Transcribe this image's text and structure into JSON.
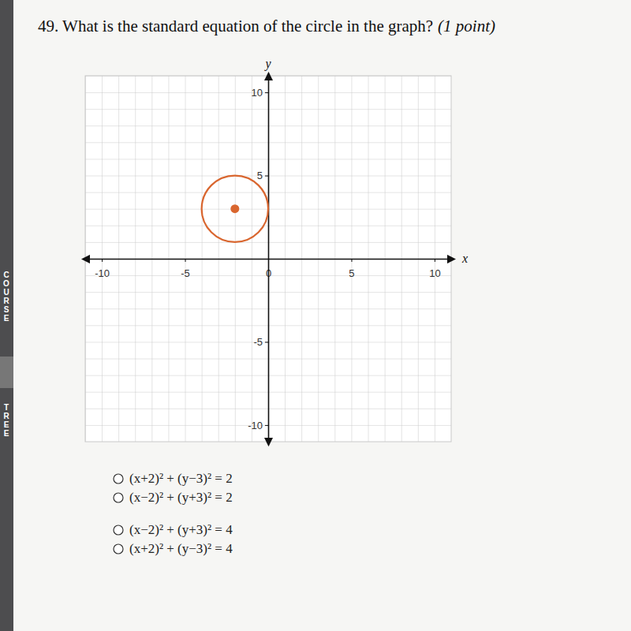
{
  "question": {
    "text": "49. What is the standard equation of the circle in the graph?",
    "points": "(1 point)"
  },
  "sidebar": [
    "COURSE",
    "TREE"
  ],
  "chart_data": {
    "type": "circle",
    "x_label": "x",
    "y_label": "y",
    "center": [
      -2,
      3
    ],
    "radius": 2,
    "color": "#d9662f",
    "xlim": [
      -11,
      11
    ],
    "ylim": [
      -11,
      11
    ],
    "xticks": [
      -10,
      -5,
      0,
      5,
      10
    ],
    "yticks": [
      -10,
      -5,
      5,
      10
    ],
    "grid": true
  },
  "options": [
    "(x+2)² + (y−3)² = 2",
    "(x−2)² + (y+3)² = 2",
    "(x−2)² + (y+3)² = 4",
    "(x+2)² + (y−3)² = 4"
  ]
}
